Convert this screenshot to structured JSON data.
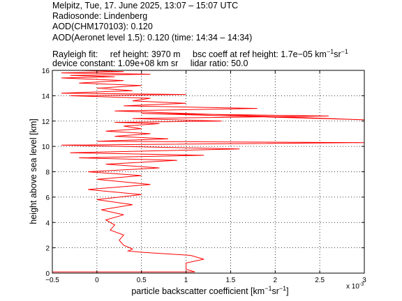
{
  "header": {
    "line1": "Melpitz, Tue, 17. June 2025, 13:07 – 15:07 UTC",
    "line2": "Radiosonde: Lindenberg",
    "line3": "AOD(CHM170103): 0.120",
    "line4": "AOD(Aeronet level 1.5): 0.120   (time: 14:34 – 14:34)",
    "rayleigh_label": "Rayleigh fit:",
    "ref_height": "ref height: 3970 m",
    "bsc_coeff_prefix": "bsc coeff at ref height: 1.7e−05 km",
    "bsc_exp1": "−1",
    "bsc_sr": "sr",
    "bsc_exp2": "−1",
    "device_constant": "device constant: 1.09e+08 km sr",
    "lidar_ratio": "lidar ratio: 50.0"
  },
  "chart_data": {
    "type": "line",
    "xlabel_prefix": "particle backscatter coefficient [km",
    "xlabel_exp1": "−1",
    "xlabel_mid": "sr",
    "xlabel_exp2": "−1",
    "xlabel_suffix": "]",
    "ylabel": "height above sea level [km]",
    "x_multiplier": "x 10",
    "x_multiplier_exp": "-3",
    "xlim": [
      -0.5,
      3.0
    ],
    "ylim": [
      0,
      16
    ],
    "xticks": [
      -0.5,
      0,
      0.5,
      1,
      1.5,
      2,
      2.5,
      3
    ],
    "xtick_labels": [
      "−0.5",
      "0",
      "0.5",
      "1",
      "1.5",
      "2",
      "2.5",
      "3"
    ],
    "yticks": [
      0,
      2,
      4,
      6,
      8,
      10,
      12,
      14,
      16
    ],
    "ytick_labels": [
      "0",
      "2",
      "4",
      "6",
      "8",
      "10",
      "12",
      "14",
      "16"
    ],
    "grid": true,
    "line_color": "#ff0000",
    "series": [
      {
        "x": [
          -0.5,
          1.1,
          1.0,
          1.0,
          1.0,
          1.2,
          1.05,
          0.5,
          0.35,
          0.4,
          0.3,
          0.25,
          0.3,
          0.15,
          0.2,
          0.1,
          0.3,
          0.05,
          0.4,
          0.0,
          0.5,
          -0.1,
          0.6,
          0.0,
          0.5,
          -0.1,
          0.7,
          0.1,
          0.9,
          -0.2,
          1.2,
          -0.3,
          1.6,
          -0.4,
          3.0,
          0.0,
          0.8,
          0.2,
          0.6,
          0.1,
          0.5,
          0.3,
          0.7,
          0.2,
          1.4,
          0.4,
          2.6,
          0.5,
          3.0,
          0.2,
          1.8,
          0.3,
          1.0,
          0.4,
          0.6,
          -0.3,
          1.0,
          -0.4,
          0.4,
          0.0,
          0.5,
          -0.2,
          0.3,
          -0.4,
          0.2,
          -0.3,
          0.6,
          -0.4,
          0.3,
          -0.2
        ],
        "y": [
          0.1,
          0.1,
          0.3,
          0.5,
          0.8,
          1.1,
          1.4,
          1.65,
          1.75,
          1.9,
          2.2,
          2.6,
          3.0,
          3.4,
          3.8,
          4.2,
          4.6,
          5.0,
          5.4,
          5.8,
          6.2,
          6.6,
          7.0,
          7.4,
          7.7,
          8.0,
          8.3,
          8.6,
          8.9,
          9.1,
          9.3,
          9.5,
          9.8,
          10.1,
          10.3,
          10.4,
          10.6,
          10.8,
          11.0,
          11.2,
          11.4,
          11.6,
          11.8,
          11.9,
          12.0,
          12.2,
          12.4,
          12.6,
          12.1,
          12.8,
          13.0,
          13.2,
          13.4,
          13.6,
          13.8,
          14.0,
          14.1,
          14.2,
          14.4,
          14.6,
          14.8,
          15.0,
          15.2,
          15.4,
          15.5,
          15.6,
          15.7,
          15.8,
          15.9,
          16.0
        ]
      }
    ]
  }
}
